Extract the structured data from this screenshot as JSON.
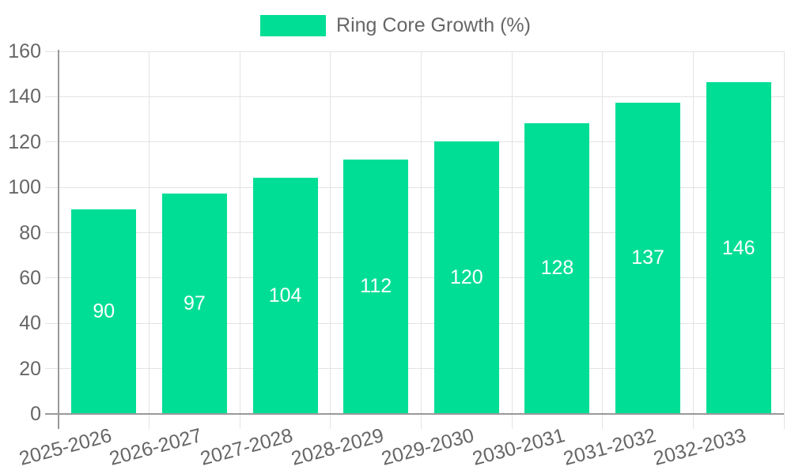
{
  "legend": {
    "label": "Ring Core Growth (%)"
  },
  "colors": {
    "bar": "#00DE95",
    "axis": "#999999",
    "grid": "#e3e3e3",
    "tick_text": "#666666",
    "value_label": "#ffffff",
    "background": "#ffffff"
  },
  "chart_data": {
    "type": "bar",
    "title": "Ring Core Growth (%)",
    "series_name": "Ring Core Growth (%)",
    "categories": [
      "2025-2026",
      "2026-2027",
      "2027-2028",
      "2028-2029",
      "2029-2030",
      "2030-2031",
      "2031-2032",
      "2032-2033"
    ],
    "values": [
      90,
      97,
      104,
      112,
      120,
      128,
      137,
      146
    ],
    "value_labels": [
      "90",
      "97",
      "104",
      "112",
      "120",
      "128",
      "137",
      "146"
    ],
    "xlabel": "",
    "ylabel": "",
    "ylim": [
      0,
      160
    ],
    "ytick_step": 20,
    "ytick_labels": [
      "0",
      "20",
      "40",
      "60",
      "80",
      "100",
      "120",
      "140",
      "160"
    ],
    "grid": true,
    "legend_position": "top",
    "bar_color": "#00DE95",
    "value_label_position": "center-inside"
  }
}
